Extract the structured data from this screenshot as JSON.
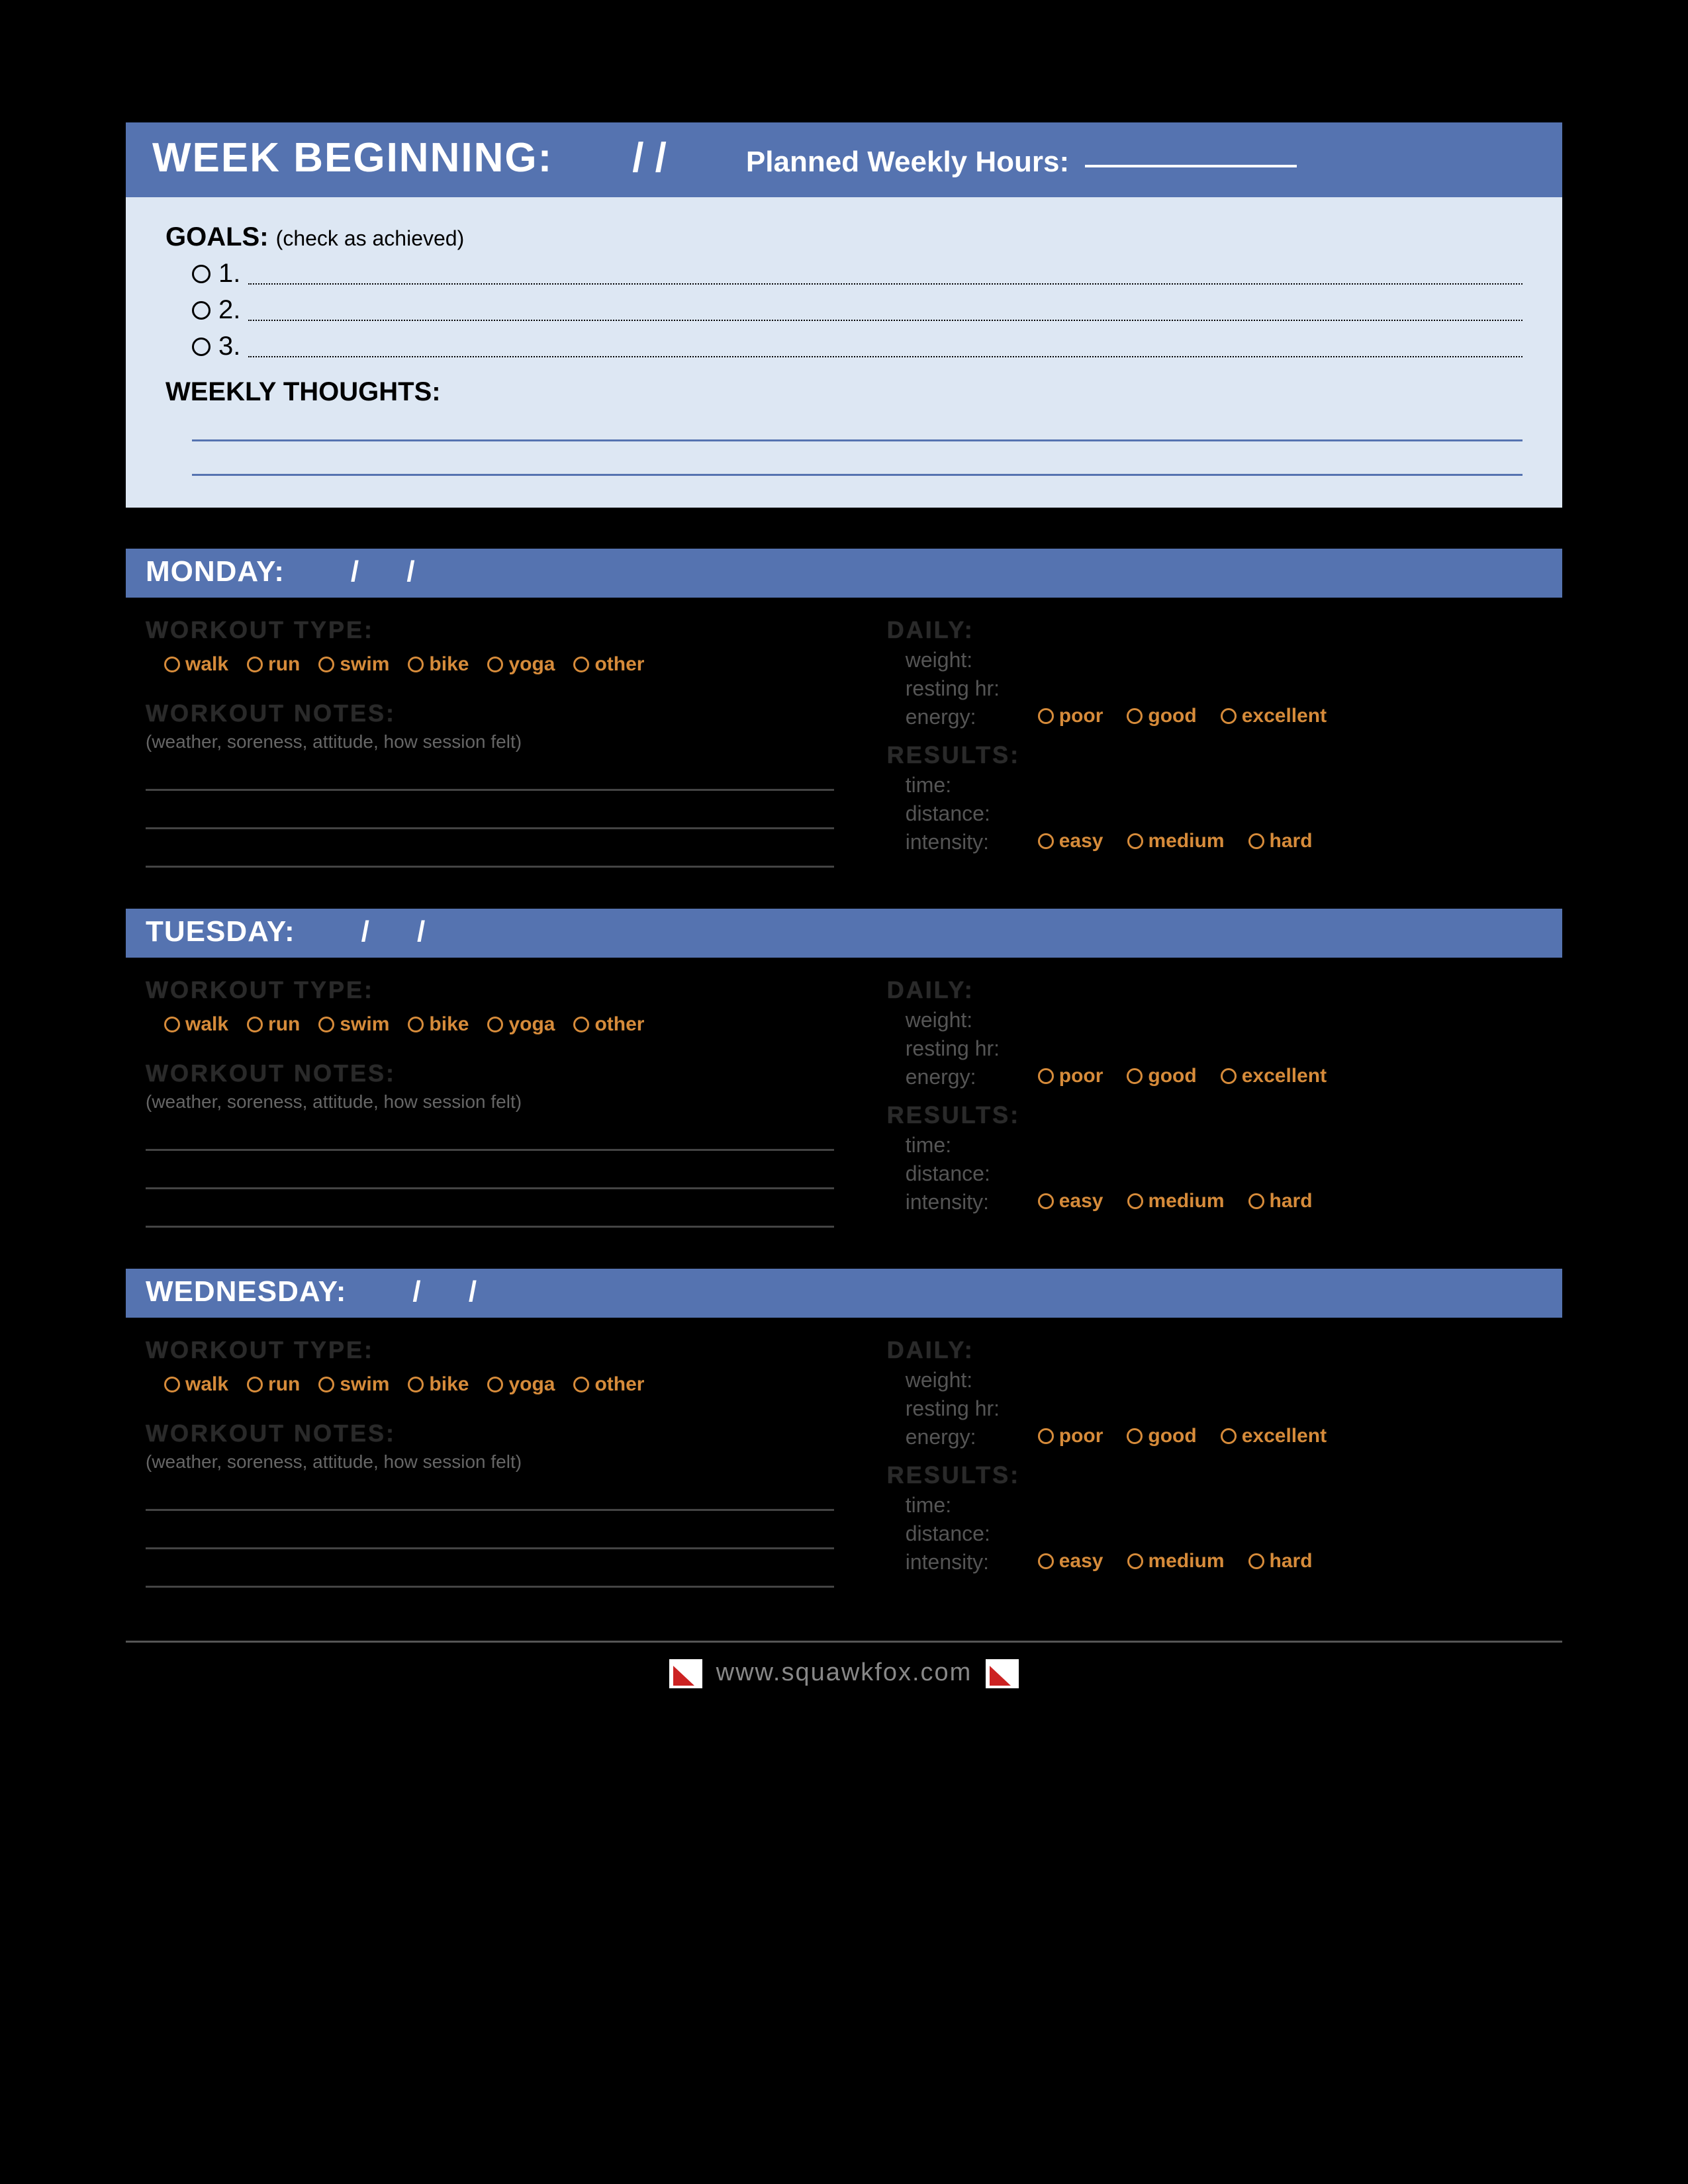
{
  "colors": {
    "page_bg": "#000000",
    "bar_bg": "#5573b0",
    "bar_text": "#ffffff",
    "panel_bg": "#dde7f3",
    "accent": "#d68b3a",
    "dim_label": "#2a2a2a",
    "field_label": "#555555",
    "hint": "#666666",
    "footer_text": "#888888"
  },
  "header": {
    "title": "WEEK BEGINNING:",
    "date_sep": "/    /",
    "planned_label": "Planned Weekly Hours:"
  },
  "goals_panel": {
    "title": "GOALS:",
    "subtitle": "(check as achieved)",
    "items": [
      "1.",
      "2.",
      "3."
    ],
    "thoughts_title": "WEEKLY THOUGHTS:",
    "thought_lines": 2
  },
  "day_labels": {
    "workout_type": "WORKOUT TYPE:",
    "workout_notes": "WORKOUT NOTES:",
    "notes_hint": "(weather, soreness, attitude, how session felt)",
    "note_lines": 3,
    "daily": "DAILY:",
    "weight": "weight:",
    "resting_hr": "resting hr:",
    "energy": "energy:",
    "results": "RESULTS:",
    "time": "time:",
    "distance": "distance:",
    "intensity": "intensity:"
  },
  "workout_types": [
    "walk",
    "run",
    "swim",
    "bike",
    "yoga",
    "other"
  ],
  "energy_opts": [
    "poor",
    "good",
    "excellent"
  ],
  "intensity_opts": [
    "easy",
    "medium",
    "hard"
  ],
  "days": [
    {
      "name": "MONDAY:",
      "date_sep": "/      /"
    },
    {
      "name": "TUESDAY:",
      "date_sep": "/      /"
    },
    {
      "name": "WEDNESDAY:",
      "date_sep": "/      /"
    }
  ],
  "footer": {
    "url": "www.squawkfox.com"
  }
}
